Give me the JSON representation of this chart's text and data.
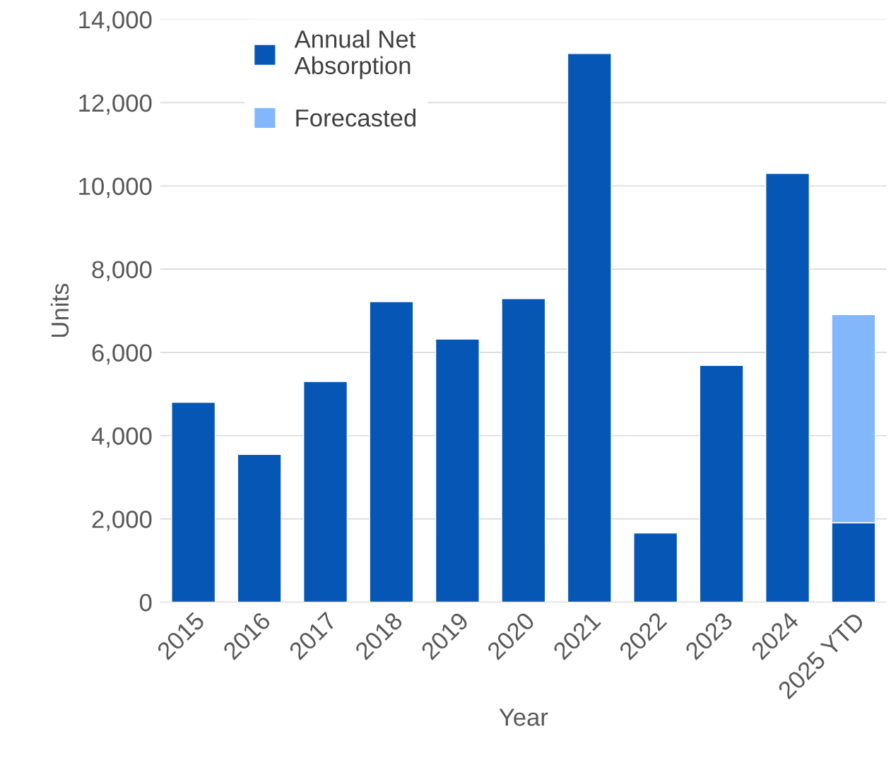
{
  "chart_data": {
    "type": "bar",
    "xlabel": "Year",
    "ylabel": "Units",
    "categories": [
      "2015",
      "2016",
      "2017",
      "2018",
      "2019",
      "2020",
      "2021",
      "2022",
      "2023",
      "2024",
      "2025 YTD"
    ],
    "stacked": true,
    "series": [
      {
        "name": "Annual Net\nAbsorption",
        "color": "#0657b5",
        "values": [
          4800,
          3550,
          5300,
          7220,
          6320,
          7290,
          13180,
          1660,
          5690,
          10300,
          1910
        ]
      },
      {
        "name": "Forecasted",
        "color": "#82b8fb",
        "values": [
          null,
          null,
          null,
          null,
          null,
          null,
          null,
          null,
          null,
          null,
          5000
        ]
      }
    ],
    "ylim": [
      0,
      14000
    ],
    "yticks": [
      {
        "value": 0,
        "label": "0"
      },
      {
        "value": 2000,
        "label": "2,000"
      },
      {
        "value": 4000,
        "label": "4,000"
      },
      {
        "value": 6000,
        "label": "6,000"
      },
      {
        "value": 8000,
        "label": "8,000"
      },
      {
        "value": 10000,
        "label": "10,000"
      },
      {
        "value": 12000,
        "label": "12,000"
      },
      {
        "value": 14000,
        "label": "14,000"
      }
    ],
    "grid": "y",
    "legend": "top left"
  }
}
